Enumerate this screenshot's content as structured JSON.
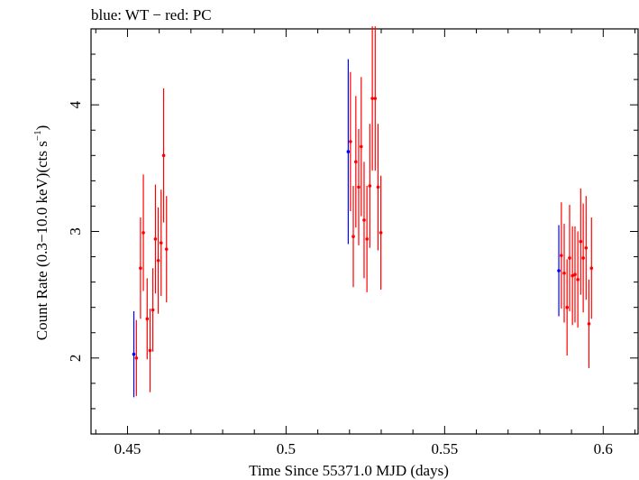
{
  "chart_data": {
    "type": "scatter",
    "title": "blue: WT − red: PC",
    "xlabel": "Time Since 55371.0 MJD (days)",
    "ylabel_main": "Count Rate (0.3−10.0 keV)(cts s",
    "ylabel_sup": "−1",
    "ylabel_close": ")",
    "xlim": [
      0.4385,
      0.611
    ],
    "ylim": [
      1.4,
      4.6
    ],
    "xticks": [
      0.45,
      0.5,
      0.55,
      0.6
    ],
    "xtick_labels": [
      "0.45",
      "0.5",
      "0.55",
      "0.6"
    ],
    "yticks": [
      2,
      3,
      4
    ],
    "ytick_labels": [
      "2",
      "3",
      "4"
    ],
    "grid": false,
    "series": [
      {
        "name": "WT",
        "color": "#0000ff",
        "points": [
          {
            "x": 0.452,
            "y": 2.03,
            "yerr": 0.34
          },
          {
            "x": 0.5196,
            "y": 3.63,
            "yerr": 0.73
          },
          {
            "x": 0.586,
            "y": 2.69,
            "yerr": 0.36
          }
        ]
      },
      {
        "name": "PC",
        "color": "#ff0000",
        "points": [
          {
            "x": 0.4528,
            "y": 2.0,
            "yerr": 0.3
          },
          {
            "x": 0.4541,
            "y": 2.71,
            "yerr": 0.4
          },
          {
            "x": 0.455,
            "y": 2.99,
            "yerr": 0.46
          },
          {
            "x": 0.4562,
            "y": 2.31,
            "yerr": 0.32
          },
          {
            "x": 0.4571,
            "y": 2.06,
            "yerr": 0.33
          },
          {
            "x": 0.458,
            "y": 2.38,
            "yerr": 0.33
          },
          {
            "x": 0.4588,
            "y": 2.94,
            "yerr": 0.43
          },
          {
            "x": 0.4597,
            "y": 2.77,
            "yerr": 0.42
          },
          {
            "x": 0.4606,
            "y": 2.91,
            "yerr": 0.42
          },
          {
            "x": 0.4614,
            "y": 3.6,
            "yerr": 0.53
          },
          {
            "x": 0.4623,
            "y": 2.86,
            "yerr": 0.42
          },
          {
            "x": 0.5203,
            "y": 3.71,
            "yerr": 0.55
          },
          {
            "x": 0.5212,
            "y": 2.96,
            "yerr": 0.4
          },
          {
            "x": 0.522,
            "y": 3.55,
            "yerr": 0.52
          },
          {
            "x": 0.5229,
            "y": 3.35,
            "yerr": 0.46
          },
          {
            "x": 0.5237,
            "y": 3.67,
            "yerr": 0.55
          },
          {
            "x": 0.5246,
            "y": 3.09,
            "yerr": 0.46
          },
          {
            "x": 0.5255,
            "y": 2.94,
            "yerr": 0.42
          },
          {
            "x": 0.5264,
            "y": 3.36,
            "yerr": 0.49
          },
          {
            "x": 0.5272,
            "y": 4.05,
            "yerr": 0.57
          },
          {
            "x": 0.5281,
            "y": 4.05,
            "yerr": 0.57
          },
          {
            "x": 0.529,
            "y": 3.35,
            "yerr": 0.5
          },
          {
            "x": 0.5299,
            "y": 2.99,
            "yerr": 0.45
          },
          {
            "x": 0.5868,
            "y": 2.81,
            "yerr": 0.42
          },
          {
            "x": 0.5877,
            "y": 2.67,
            "yerr": 0.39
          },
          {
            "x": 0.5886,
            "y": 2.4,
            "yerr": 0.38
          },
          {
            "x": 0.5894,
            "y": 2.79,
            "yerr": 0.42
          },
          {
            "x": 0.5903,
            "y": 2.65,
            "yerr": 0.39
          },
          {
            "x": 0.5911,
            "y": 2.66,
            "yerr": 0.38
          },
          {
            "x": 0.592,
            "y": 2.62,
            "yerr": 0.38
          },
          {
            "x": 0.5929,
            "y": 2.92,
            "yerr": 0.42
          },
          {
            "x": 0.5937,
            "y": 2.79,
            "yerr": 0.43
          },
          {
            "x": 0.5946,
            "y": 2.87,
            "yerr": 0.41
          },
          {
            "x": 0.5955,
            "y": 2.27,
            "yerr": 0.35
          },
          {
            "x": 0.5963,
            "y": 2.71,
            "yerr": 0.4
          }
        ]
      }
    ]
  }
}
